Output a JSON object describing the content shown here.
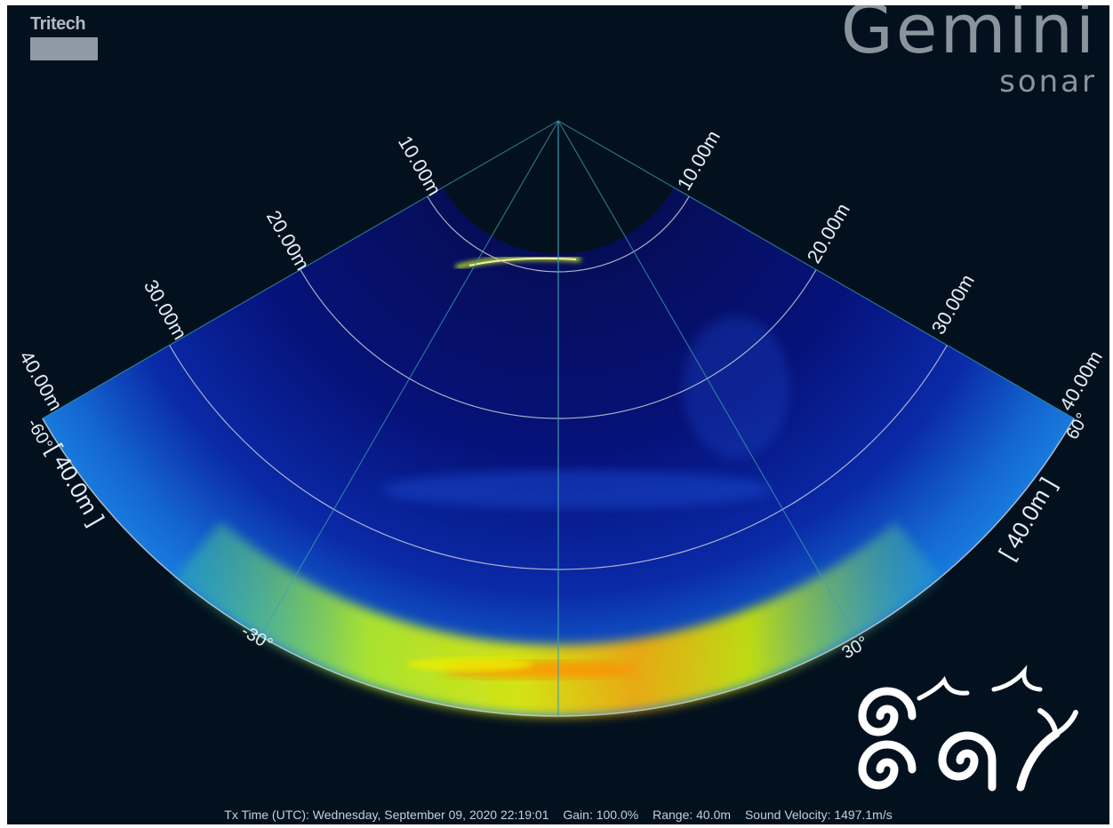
{
  "brand": {
    "maker": "Tritech",
    "product": "Gemini",
    "product_sub": "sonar"
  },
  "sonar": {
    "range_label": "[ 40.0m ]",
    "range_rings": [
      "10.00m",
      "20.00m",
      "30.00m",
      "40.00m"
    ],
    "bearing_labels": {
      "left_minus_60": "-60°",
      "left_minus_30": "-30°",
      "right_30": "30°",
      "right_60": "60°"
    },
    "colors": {
      "background": "#03111f",
      "fan_base": "#05126b",
      "seabed_strong": "#d6f000",
      "seabed_hot": "#ff7a00",
      "grid_ring": "#c8cfd8",
      "grid_spoke": "#3fa0b0"
    }
  },
  "status": {
    "tx_time": "Tx Time (UTC): Wednesday, September 09, 2020 22:19:01",
    "gain": "Gain: 100.0%",
    "range": "Range: 40.0m",
    "sound_velocity": "Sound Velocity: 1497.1m/s"
  },
  "logo": {
    "name": "spiral-and-birds-logo"
  }
}
